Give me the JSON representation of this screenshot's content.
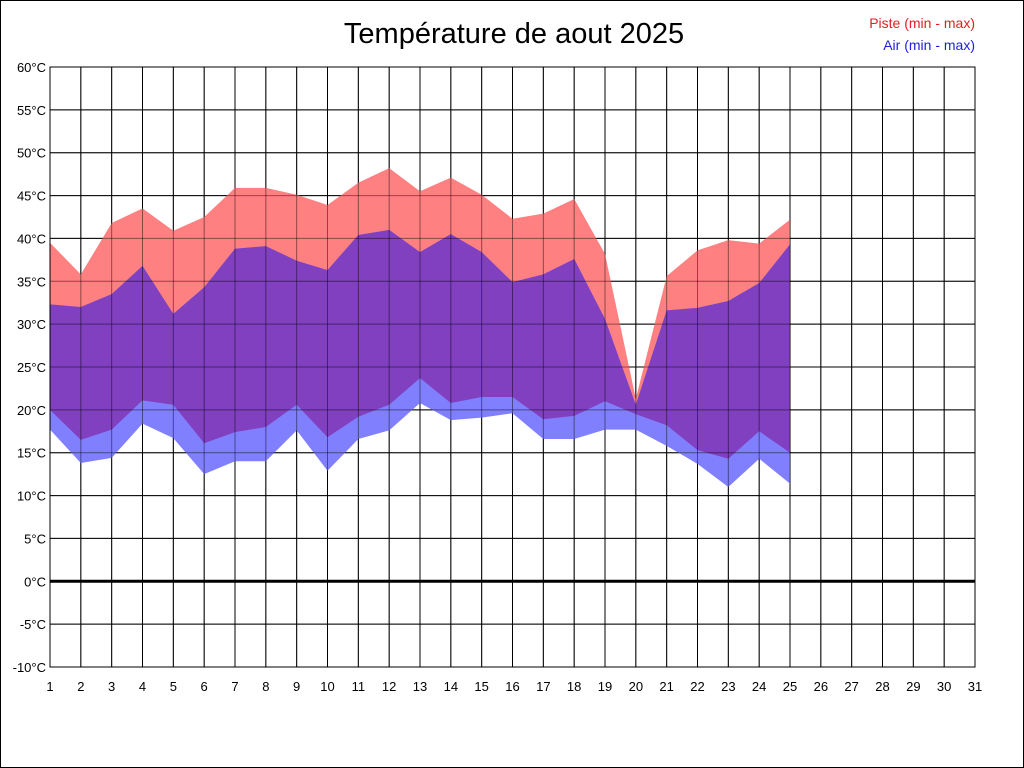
{
  "chart_data": {
    "type": "area",
    "title": "Température de aout 2025",
    "xlabel": "",
    "ylabel": "",
    "x": [
      1,
      2,
      3,
      4,
      5,
      6,
      7,
      8,
      9,
      10,
      11,
      12,
      13,
      14,
      15,
      16,
      17,
      18,
      19,
      20,
      21,
      22,
      23,
      24,
      25
    ],
    "x_ticks": [
      "1",
      "2",
      "3",
      "4",
      "5",
      "6",
      "7",
      "8",
      "9",
      "10",
      "11",
      "12",
      "13",
      "14",
      "15",
      "16",
      "17",
      "18",
      "19",
      "20",
      "21",
      "22",
      "23",
      "24",
      "25",
      "26",
      "27",
      "28",
      "29",
      "30",
      "31"
    ],
    "xlim": [
      1,
      31
    ],
    "y_ticks": [
      "-10°C",
      "-5°C",
      "0°C",
      "5°C",
      "10°C",
      "15°C",
      "20°C",
      "25°C",
      "30°C",
      "35°C",
      "40°C",
      "45°C",
      "50°C",
      "55°C",
      "60°C"
    ],
    "ylim": [
      -10,
      60
    ],
    "grid": true,
    "legend_position": "top-right",
    "series": [
      {
        "name": "Piste (min - max)",
        "color": "#ff8080",
        "min": [
          20,
          16.5,
          17.7,
          21.1,
          20.6,
          16.1,
          17.4,
          18,
          20.6,
          16.8,
          19.2,
          20.6,
          23.7,
          20.8,
          21.5,
          21.5,
          18.9,
          19.3,
          21,
          19.5,
          18.2,
          15.3,
          14.3,
          17.5,
          15
        ],
        "max": [
          39.5,
          35.8,
          41.8,
          43.5,
          40.9,
          42.5,
          45.9,
          45.9,
          45.1,
          43.9,
          46.5,
          48.2,
          45.5,
          47.1,
          45.1,
          42.3,
          42.9,
          44.6,
          38.2,
          21.3,
          35.6,
          38.6,
          39.8,
          39.4,
          42.2
        ]
      },
      {
        "name": "Air (min - max)",
        "color": "#8080ff",
        "min": [
          17.7,
          13.8,
          14.4,
          18.4,
          16.7,
          12.5,
          14,
          14,
          17.6,
          12.9,
          16.6,
          17.6,
          20.8,
          18.8,
          19.1,
          19.6,
          16.6,
          16.6,
          17.7,
          17.7,
          15.8,
          13.7,
          11,
          14.3,
          11.4
        ],
        "max": [
          32.3,
          32,
          33.5,
          36.8,
          31.2,
          34.3,
          38.8,
          39.1,
          37.4,
          36.3,
          40.4,
          41,
          38.4,
          40.5,
          38.4,
          34.9,
          35.8,
          37.6,
          30.6,
          20.6,
          31.6,
          31.9,
          32.7,
          34.8,
          39.3
        ]
      }
    ],
    "overlap_color": "#8040c0"
  }
}
